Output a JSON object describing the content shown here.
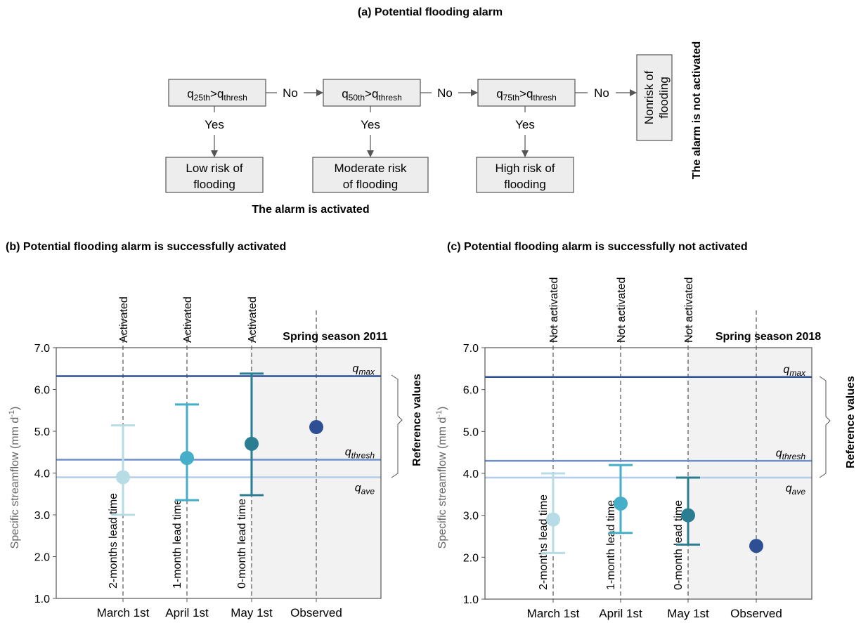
{
  "flowchart": {
    "title": "(a) Potential flooding alarm",
    "conditions": [
      {
        "q": "q",
        "sub": "25th",
        "op": ">q",
        "thr": "thresh"
      },
      {
        "q": "q",
        "sub": "50th",
        "op": ">q",
        "thr": "thresh"
      },
      {
        "q": "q",
        "sub": "75th",
        "op": ">q",
        "thr": "thresh"
      }
    ],
    "no_label": "No",
    "yes_label": "Yes",
    "outcomes": [
      {
        "line1": "Low risk of",
        "line2": "flooding"
      },
      {
        "line1": "Moderate risk",
        "line2": "of flooding"
      },
      {
        "line1": "High risk of",
        "line2": "flooding"
      }
    ],
    "nonrisk": {
      "line1": "Nonrisk of",
      "line2": "flooding"
    },
    "activated_caption": "The alarm is activated",
    "not_activated_caption": "The alarm is not activated"
  },
  "colors": {
    "lead2": "#b8dce6",
    "lead1": "#45aec8",
    "lead0": "#2b7d92",
    "observed": "#2e4f94",
    "qmax_line": "#2e4f94",
    "qthresh_line": "#6f8fcb",
    "qave_line": "#b5cce8",
    "shade": "#f2f2f2",
    "box_fill": "#ededed"
  },
  "shared": {
    "reference_values_label": "Reference values",
    "ref_q": "q",
    "ref_labels": {
      "max": "max",
      "thresh": "thresh",
      "ave": "ave"
    },
    "lead_labels": [
      "2-months lead time",
      "1-month lead time",
      "0-month lead time"
    ]
  },
  "chart_data": [
    {
      "type": "scatter",
      "title": "(b) Potential flooding alarm is successfully activated",
      "season_label": "Spring season 2011",
      "ylabel": "Specific streamflow (mm d",
      "ylabel_sup": "-1",
      "ylabel_end": ")",
      "ylim": [
        1.0,
        7.0
      ],
      "yticks": [
        "1.0",
        "2.0",
        "3.0",
        "4.0",
        "5.0",
        "6.0",
        "7.0"
      ],
      "categories": [
        "March 1st",
        "April 1st",
        "May 1st",
        "Observed"
      ],
      "status_labels": [
        "Activated",
        "Activated",
        "Activated"
      ],
      "reference": {
        "qmax": 6.32,
        "qthresh": 4.32,
        "qave": 3.9
      },
      "forecasts": [
        {
          "median": 3.9,
          "low": 3.0,
          "high": 5.14
        },
        {
          "median": 4.36,
          "low": 3.35,
          "high": 5.64
        },
        {
          "median": 4.7,
          "low": 3.47,
          "high": 6.38
        }
      ],
      "observed": 5.1
    },
    {
      "type": "scatter",
      "title": "(c) Potential flooding alarm is successfully not activated",
      "season_label": "Spring season 2018",
      "ylabel": "Specific streamflow (mm d",
      "ylabel_sup": "-1",
      "ylabel_end": ")",
      "ylim": [
        1.0,
        7.0
      ],
      "yticks": [
        "1.0",
        "2.0",
        "3.0",
        "4.0",
        "5.0",
        "6.0",
        "7.0"
      ],
      "categories": [
        "March 1st",
        "April 1st",
        "May 1st",
        "Observed"
      ],
      "status_labels": [
        "Not activated",
        "Not activated",
        "Not activated"
      ],
      "reference": {
        "qmax": 6.3,
        "qthresh": 4.3,
        "qave": 3.9
      },
      "forecasts": [
        {
          "median": 2.9,
          "low": 2.1,
          "high": 4.0
        },
        {
          "median": 3.28,
          "low": 2.58,
          "high": 4.2
        },
        {
          "median": 3.0,
          "low": 2.3,
          "high": 3.9
        }
      ],
      "observed": 2.27
    }
  ]
}
